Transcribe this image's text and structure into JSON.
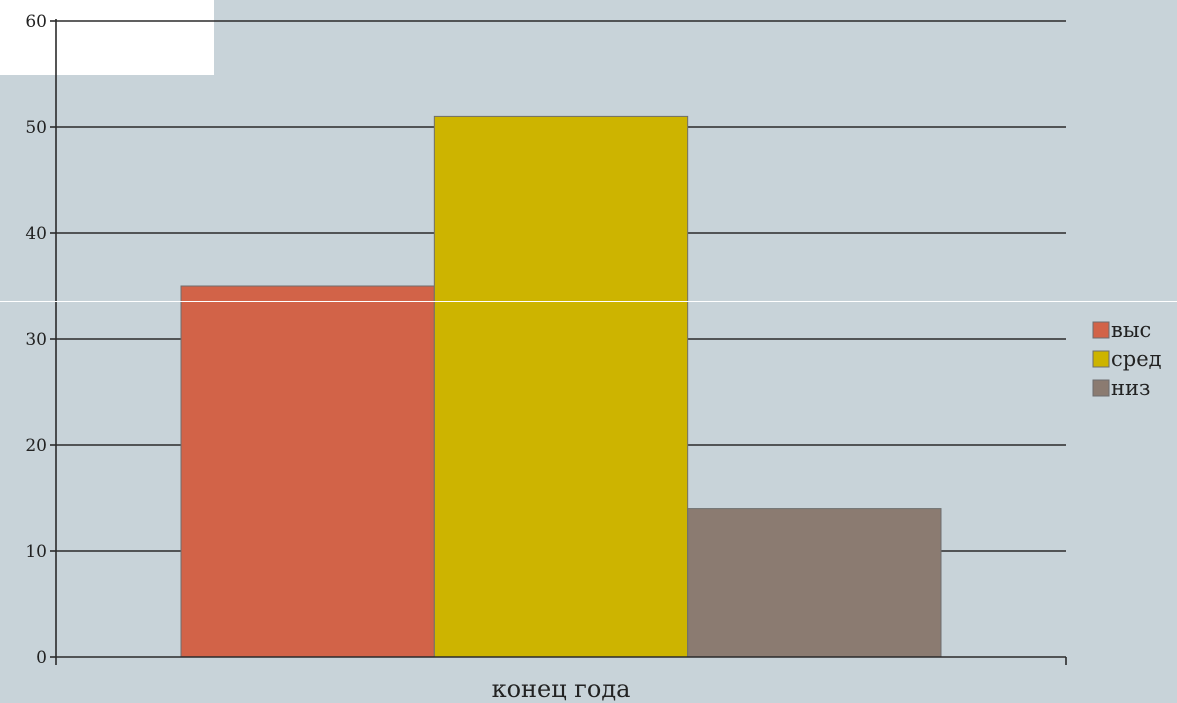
{
  "chart_data": {
    "type": "bar",
    "categories": [
      "конец года"
    ],
    "series": [
      {
        "name": "выс",
        "values": [
          35
        ],
        "color": "#d26348"
      },
      {
        "name": "сред",
        "values": [
          51
        ],
        "color": "#cdb400"
      },
      {
        "name": "низ",
        "values": [
          14
        ],
        "color": "#8b7b71"
      }
    ],
    "ylim": [
      0,
      60
    ],
    "yticks": [
      0,
      10,
      20,
      30,
      40,
      50,
      60
    ],
    "title": "",
    "xlabel": "",
    "ylabel": "",
    "grid": true,
    "legend_position": "right"
  }
}
